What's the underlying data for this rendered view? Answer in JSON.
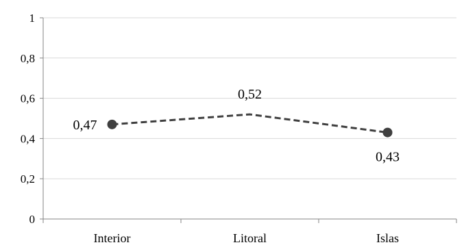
{
  "chart_data": {
    "type": "line",
    "categories": [
      "Interior",
      "Litoral",
      "Islas"
    ],
    "series": [
      {
        "values": [
          0.47,
          0.52,
          0.43
        ],
        "data_labels": [
          "0,47",
          "0,52",
          "0,43"
        ],
        "markers": [
          true,
          false,
          true
        ],
        "line_style": "dashed",
        "color": "#3f3f3f"
      }
    ],
    "y_ticks": [
      0,
      0.2,
      0.4,
      0.6,
      0.8,
      1
    ],
    "y_tick_labels": [
      "0",
      "0,2",
      "0,4",
      "0,6",
      "0,8",
      "1"
    ],
    "ylim": [
      0,
      1
    ],
    "grid": true,
    "legend": "none",
    "title": "",
    "xlabel": "",
    "ylabel": "",
    "colors": {
      "grid": "#d9d9d9",
      "axis": "#868686",
      "line": "#3f3f3f"
    }
  }
}
